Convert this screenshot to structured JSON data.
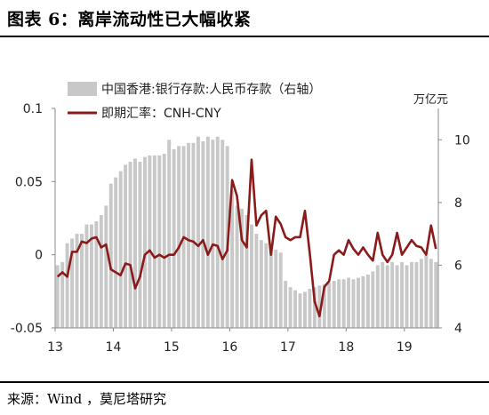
{
  "header": {
    "title": "图表 6：离岸流动性已大幅收紧"
  },
  "footer": {
    "source": "来源：Wind ，莫尼塔研究"
  },
  "chart_data": {
    "type": "bar+line",
    "x_tick_labels": [
      "13",
      "14",
      "15",
      "16",
      "17",
      "18",
      "19"
    ],
    "left_axis": {
      "ticks": [
        "-0.05",
        "0",
        "0.05",
        "0.1"
      ],
      "range": [
        -0.05,
        0.1
      ]
    },
    "right_axis": {
      "unit": "万亿元",
      "ticks": [
        "4",
        "6",
        "8",
        "10"
      ],
      "range": [
        4,
        11
      ]
    },
    "bar_color": "#c8c8c8",
    "line_color": "#8b1a1a",
    "bar_series": {
      "name": "中国香港:银行存款:人民币存款（右轴）",
      "axis": "right",
      "months": [
        "2013-01",
        "2013-02",
        "2013-03",
        "2013-04",
        "2013-05",
        "2013-06",
        "2013-07",
        "2013-08",
        "2013-09",
        "2013-10",
        "2013-11",
        "2013-12",
        "2014-01",
        "2014-02",
        "2014-03",
        "2014-04",
        "2014-05",
        "2014-06",
        "2014-07",
        "2014-08",
        "2014-09",
        "2014-10",
        "2014-11",
        "2014-12",
        "2015-01",
        "2015-02",
        "2015-03",
        "2015-04",
        "2015-05",
        "2015-06",
        "2015-07",
        "2015-08",
        "2015-09",
        "2015-10",
        "2015-11",
        "2015-12",
        "2016-01",
        "2016-02",
        "2016-03",
        "2016-04",
        "2016-05",
        "2016-06",
        "2016-07",
        "2016-08",
        "2016-09",
        "2016-10",
        "2016-11",
        "2016-12",
        "2017-01",
        "2017-02",
        "2017-03",
        "2017-04",
        "2017-05",
        "2017-06",
        "2017-07",
        "2017-08",
        "2017-09",
        "2017-10",
        "2017-11",
        "2017-12",
        "2018-01",
        "2018-02",
        "2018-03",
        "2018-04",
        "2018-05",
        "2018-06",
        "2018-07",
        "2018-08",
        "2018-09",
        "2018-10",
        "2018-11",
        "2018-12",
        "2019-01",
        "2019-02",
        "2019-03",
        "2019-04",
        "2019-05",
        "2019-06",
        "2019-07"
      ],
      "values": [
        6.0,
        6.1,
        6.7,
        6.85,
        7.0,
        7.0,
        7.3,
        7.3,
        7.4,
        7.6,
        7.9,
        8.6,
        8.8,
        9.0,
        9.2,
        9.3,
        9.4,
        9.3,
        9.45,
        9.5,
        9.5,
        9.5,
        9.55,
        10.0,
        9.7,
        9.8,
        9.8,
        9.9,
        9.9,
        10.1,
        9.95,
        10.1,
        10.0,
        10.1,
        10.0,
        9.8,
        8.4,
        7.9,
        7.8,
        7.6,
        7.3,
        7.0,
        6.8,
        6.7,
        6.6,
        6.5,
        6.4,
        5.5,
        5.3,
        5.2,
        5.1,
        5.15,
        5.25,
        5.3,
        5.35,
        5.4,
        5.45,
        5.5,
        5.55,
        5.55,
        5.6,
        5.55,
        5.6,
        5.65,
        5.7,
        5.8,
        6.0,
        6.1,
        6.0,
        6.1,
        6.0,
        6.1,
        6.0,
        6.1,
        6.1,
        6.2,
        6.3,
        6.2,
        6.1
      ]
    },
    "line_series": {
      "name": "即期汇率：CNH-CNY",
      "axis": "left",
      "values": [
        -0.015,
        -0.012,
        -0.015,
        0.002,
        0.002,
        0.009,
        0.008,
        0.011,
        0.012,
        0.005,
        0.007,
        -0.01,
        -0.012,
        -0.014,
        -0.006,
        -0.007,
        -0.023,
        -0.015,
        0.0,
        0.003,
        -0.002,
        0.0,
        -0.002,
        0.0,
        0.0,
        0.005,
        0.012,
        0.01,
        0.009,
        0.006,
        0.01,
        0.0,
        0.007,
        0.006,
        -0.003,
        0.003,
        0.051,
        0.04,
        0.01,
        0.005,
        0.065,
        0.02,
        0.027,
        0.03,
        0.0,
        0.026,
        0.021,
        0.012,
        0.01,
        0.012,
        0.012,
        0.03,
        0.001,
        -0.032,
        -0.042,
        -0.022,
        -0.018,
        0.0,
        0.003,
        0.0,
        0.01,
        0.004,
        0.0,
        0.005,
        0.0,
        -0.004,
        0.015,
        0.0,
        -0.005,
        0.0,
        0.015,
        0.0,
        0.005,
        0.01,
        0.006,
        0.005,
        0.0,
        0.02,
        0.004
      ]
    },
    "grid": false,
    "legend_position": "top-center"
  }
}
